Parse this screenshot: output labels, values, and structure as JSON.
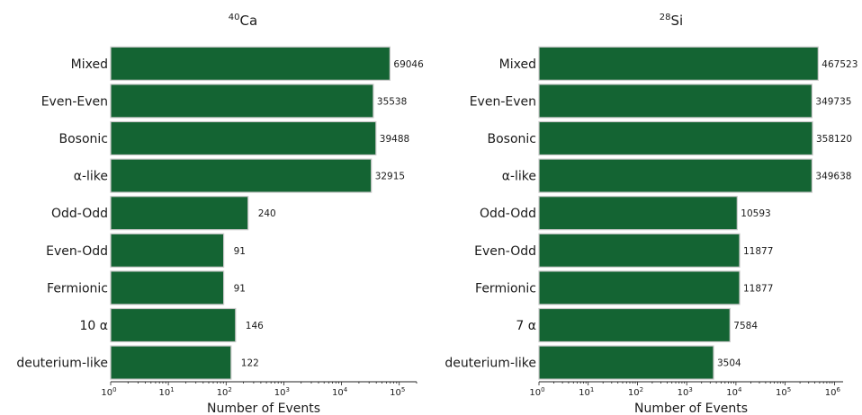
{
  "chart_data": [
    {
      "type": "bar",
      "orientation": "horizontal",
      "title_sup": "40",
      "title": "Ca",
      "xlabel": "Number of Events",
      "xscale": "log",
      "xlim": [
        1,
        200000
      ],
      "bar_color": "#146433",
      "categories": [
        "Mixed",
        "Even-Even",
        "Bosonic",
        "α-like",
        "Odd-Odd",
        "Even-Odd",
        "Fermionic",
        "10 α",
        "deuterium-like"
      ],
      "values": [
        69046,
        35538,
        39488,
        32915,
        240,
        91,
        91,
        146,
        122
      ],
      "value_labels": [
        "69046",
        "35538",
        "39488",
        "32915",
        "240",
        "91",
        "91",
        "146",
        "122"
      ],
      "ticks": [
        {
          "base": "10",
          "exp": "0"
        },
        {
          "base": "10",
          "exp": "1"
        },
        {
          "base": "10",
          "exp": "2"
        },
        {
          "base": "10",
          "exp": "3"
        },
        {
          "base": "10",
          "exp": "4"
        },
        {
          "base": "10",
          "exp": "5"
        }
      ]
    },
    {
      "type": "bar",
      "orientation": "horizontal",
      "title_sup": "28",
      "title": "Si",
      "xlabel": "Number of Events",
      "xscale": "log",
      "xlim": [
        1,
        1500000
      ],
      "bar_color": "#146433",
      "categories": [
        "Mixed",
        "Even-Even",
        "Bosonic",
        "α-like",
        "Odd-Odd",
        "Even-Odd",
        "Fermionic",
        "7 α",
        "deuterium-like"
      ],
      "values": [
        467523,
        349735,
        358120,
        349638,
        10593,
        11877,
        11877,
        7584,
        3504
      ],
      "value_labels": [
        "467523",
        "349735",
        "358120",
        "349638",
        "10593",
        "11877",
        "11877",
        "7584",
        "3504"
      ],
      "ticks": [
        {
          "base": "10",
          "exp": "0"
        },
        {
          "base": "10",
          "exp": "1"
        },
        {
          "base": "10",
          "exp": "2"
        },
        {
          "base": "10",
          "exp": "3"
        },
        {
          "base": "10",
          "exp": "4"
        },
        {
          "base": "10",
          "exp": "5"
        },
        {
          "base": "10",
          "exp": "6"
        }
      ]
    }
  ]
}
